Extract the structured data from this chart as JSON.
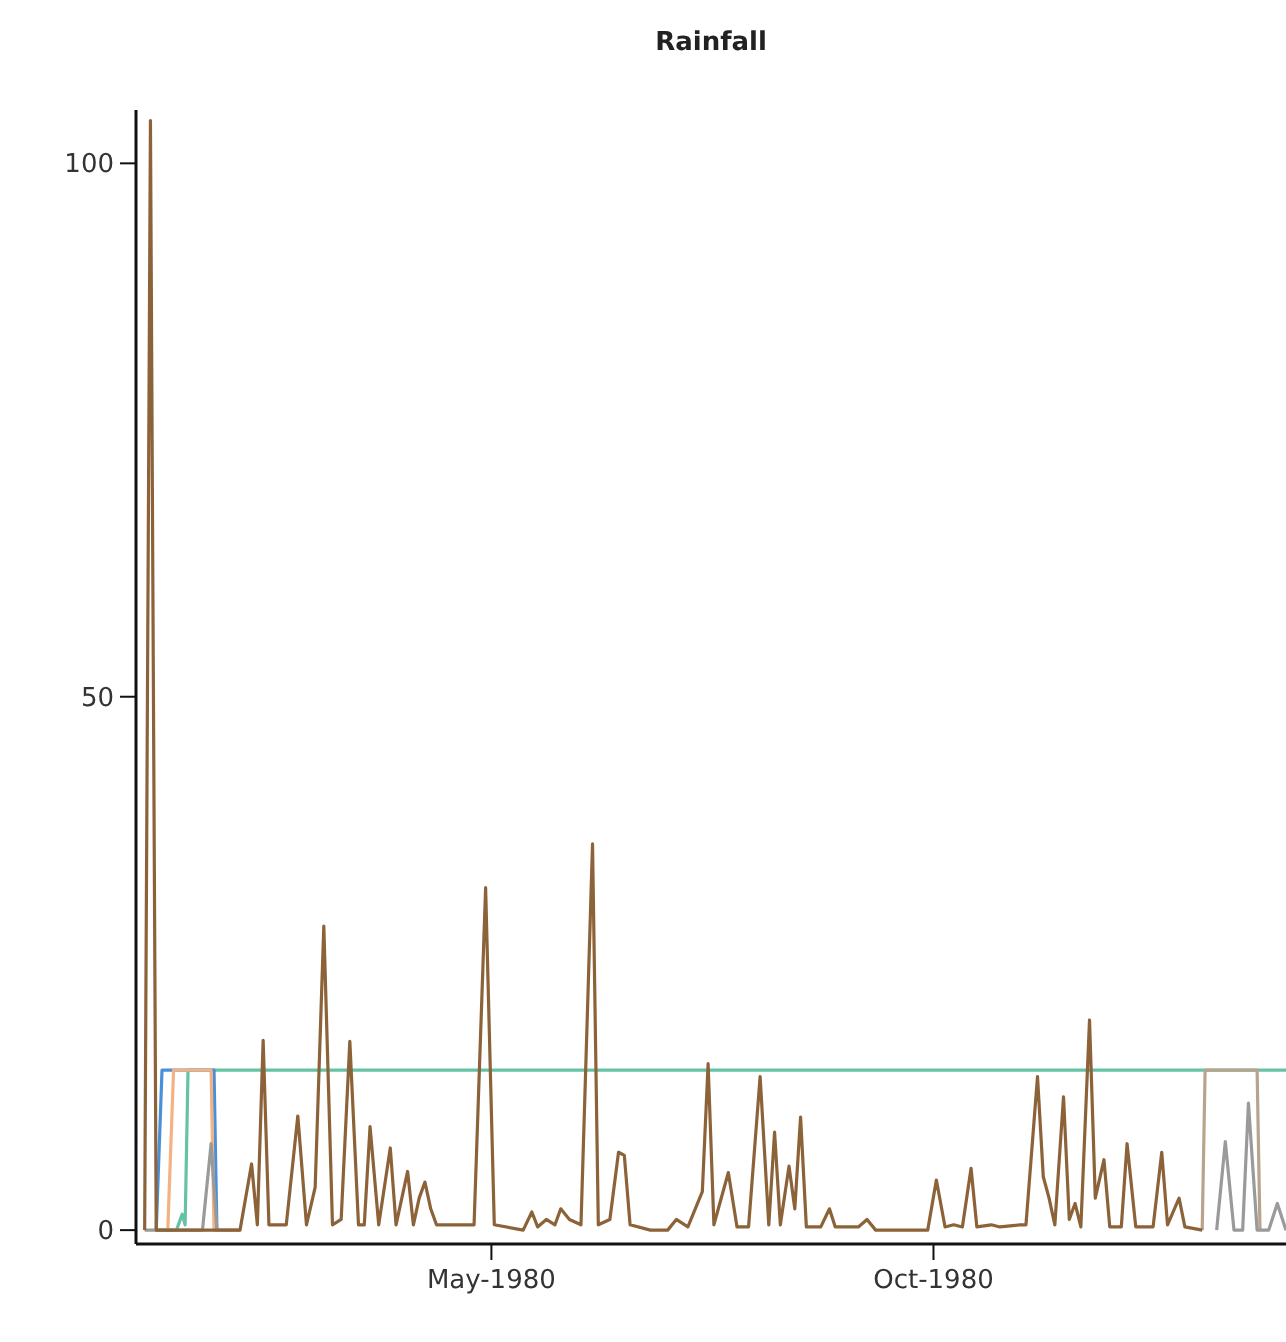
{
  "chart_data": {
    "type": "line",
    "title": "Rainfall",
    "xlim": [
      "1979-12-30",
      "1981-01-31"
    ],
    "xticks": [
      {
        "value": "1980-05-01",
        "label": "May-1980"
      },
      {
        "value": "1980-10-01",
        "label": "Oct-1980"
      }
    ],
    "ylim": [
      -1.3,
      105
    ],
    "yticks": [
      0,
      50,
      100
    ],
    "grid": false,
    "marker": "none",
    "line_style": "solid",
    "series": [
      {
        "color": "#66c2a5",
        "x": [
          "1980-01-06",
          "1980-01-13",
          "1980-01-15",
          "1980-01-16",
          "1980-01-17",
          "1981-01-31"
        ],
        "values": [
          0,
          0,
          1.5,
          0.5,
          15,
          15
        ]
      },
      {
        "color": "#4a90d9",
        "x": [
          "1980-01-06",
          "1980-01-08",
          "1980-01-26",
          "1980-01-27",
          "1980-02-04"
        ],
        "values": [
          0,
          15,
          15,
          0,
          0
        ]
      },
      {
        "color": "#f4b183",
        "x": [
          "1980-01-10",
          "1980-01-12",
          "1980-01-25",
          "1980-01-26",
          "1980-02-04"
        ],
        "values": [
          0,
          15,
          15,
          0,
          0
        ]
      },
      {
        "color": "#b8a48c",
        "x": [
          "1981-01-02",
          "1981-01-03",
          "1981-01-21",
          "1981-01-22"
        ],
        "values": [
          0,
          15,
          15,
          0
        ]
      },
      {
        "color": "#9a9a9a",
        "x": [
          "1980-01-02",
          "1980-01-22",
          "1980-01-25",
          "1980-01-27",
          "1980-06-01",
          "1981-01-07",
          "1981-01-10",
          "1981-01-13",
          "1981-01-16",
          "1981-01-18",
          "1981-01-21",
          "1981-01-25",
          "1981-01-28",
          "1981-01-31"
        ],
        "values": [
          0,
          0,
          8.1,
          0,
          null,
          0,
          8.3,
          0,
          0,
          11.9,
          0,
          0,
          2.5,
          0
        ]
      },
      {
        "color": "#8c6239",
        "x": [
          "1980-01-02",
          "1980-01-04",
          "1980-01-06",
          "1980-02-04",
          "1980-02-08",
          "1980-02-10",
          "1980-02-12",
          "1980-02-14",
          "1980-02-20",
          "1980-02-24",
          "1980-02-27",
          "1980-03-01",
          "1980-03-04",
          "1980-03-07",
          "1980-03-10",
          "1980-03-13",
          "1980-03-16",
          "1980-03-18",
          "1980-03-20",
          "1980-03-23",
          "1980-03-27",
          "1980-03-29",
          "1980-04-02",
          "1980-04-04",
          "1980-04-06",
          "1980-04-08",
          "1980-04-10",
          "1980-04-12",
          "1980-04-25",
          "1980-04-29",
          "1980-05-02",
          "1980-05-12",
          "1980-05-15",
          "1980-05-17",
          "1980-05-20",
          "1980-05-23",
          "1980-05-25",
          "1980-05-28",
          "1980-06-01",
          "1980-06-05",
          "1980-06-07",
          "1980-06-11",
          "1980-06-14",
          "1980-06-16",
          "1980-06-18",
          "1980-06-25",
          "1980-07-01",
          "1980-07-04",
          "1980-07-08",
          "1980-07-13",
          "1980-07-15",
          "1980-07-17",
          "1980-07-22",
          "1980-07-25",
          "1980-07-29",
          "1980-08-02",
          "1980-08-05",
          "1980-08-07",
          "1980-08-09",
          "1980-08-12",
          "1980-08-14",
          "1980-08-16",
          "1980-08-18",
          "1980-08-23",
          "1980-08-26",
          "1980-08-28",
          "1980-09-05",
          "1980-09-08",
          "1980-09-11",
          "1980-09-29",
          "1980-10-02",
          "1980-10-05",
          "1980-10-08",
          "1980-10-11",
          "1980-10-14",
          "1980-10-16",
          "1980-10-21",
          "1980-10-24",
          "1980-10-31",
          "1980-11-02",
          "1980-11-06",
          "1980-11-08",
          "1980-11-10",
          "1980-11-12",
          "1980-11-15",
          "1980-11-17",
          "1980-11-19",
          "1980-11-21",
          "1980-11-24",
          "1980-11-26",
          "1980-11-29",
          "1980-12-01",
          "1980-12-05",
          "1980-12-07",
          "1980-12-10",
          "1980-12-16",
          "1980-12-19",
          "1980-12-21",
          "1980-12-25",
          "1980-12-27",
          "1981-01-02"
        ],
        "values": [
          0,
          104,
          0,
          0,
          6.2,
          0.5,
          17.8,
          0.5,
          0.5,
          10.7,
          0.5,
          4,
          28.5,
          0.5,
          1,
          17.7,
          0.5,
          0.5,
          9.7,
          0.5,
          7.7,
          0.5,
          5.5,
          0.5,
          3,
          4.5,
          2,
          0.5,
          0.5,
          32.1,
          0.5,
          0,
          1.7,
          0.3,
          1,
          0.5,
          2,
          1,
          0.5,
          36.2,
          0.5,
          1,
          7.3,
          7,
          0.5,
          0,
          0,
          1,
          0.3,
          3.6,
          15.6,
          0.5,
          5.4,
          0.3,
          0.3,
          14.4,
          0.5,
          9.2,
          0.5,
          6,
          2,
          10.6,
          0.3,
          0.3,
          2,
          0.3,
          0.3,
          1,
          0,
          0,
          4.7,
          0.3,
          0.5,
          0.3,
          5.8,
          0.3,
          0.5,
          0.3,
          0.5,
          0.5,
          14.4,
          5,
          3,
          0.5,
          12.5,
          1,
          2.5,
          0.3,
          19.7,
          3,
          6.6,
          0.3,
          0.3,
          8.1,
          0.3,
          0.3,
          7.3,
          0.5,
          3,
          0.3,
          0
        ]
      }
    ]
  }
}
